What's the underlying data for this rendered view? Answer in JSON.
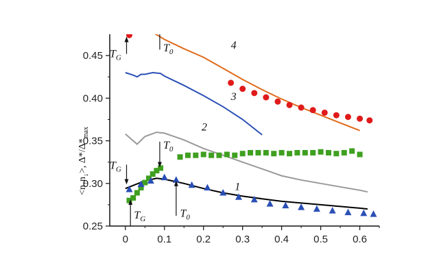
{
  "chart_data": {
    "type": "line",
    "xlim": [
      -0.04,
      0.65
    ],
    "ylim": [
      0.25,
      0.475
    ],
    "x_ticks": [
      "0",
      "0.1",
      "0.2",
      "0.3",
      "0.4",
      "0.5",
      "0.6"
    ],
    "x_tick_values": [
      0,
      0.1,
      0.2,
      0.3,
      0.4,
      0.5,
      0.6
    ],
    "y_ticks": [
      "0.25",
      "0.30",
      "0.35",
      "0.40",
      "0.45"
    ],
    "y_tick_values": [
      0.25,
      0.3,
      0.35,
      0.4,
      0.45
    ],
    "ylabel": "<n↑n↓>, Δ*/Δ*max",
    "grid": false,
    "lines": [
      {
        "name": "1",
        "color": "#000000",
        "x": [
          0.0,
          0.05,
          0.08,
          0.1,
          0.15,
          0.2,
          0.25,
          0.3,
          0.35,
          0.4,
          0.45,
          0.5,
          0.55,
          0.6,
          0.62
        ],
        "y": [
          0.294,
          0.303,
          0.306,
          0.305,
          0.3,
          0.294,
          0.289,
          0.285,
          0.282,
          0.279,
          0.277,
          0.275,
          0.273,
          0.271,
          0.27
        ]
      },
      {
        "name": "2",
        "color": "#999999",
        "x": [
          0.0,
          0.03,
          0.05,
          0.08,
          0.1,
          0.15,
          0.2,
          0.25,
          0.3,
          0.35,
          0.4,
          0.45,
          0.5,
          0.55,
          0.6,
          0.62
        ],
        "y": [
          0.358,
          0.346,
          0.355,
          0.36,
          0.359,
          0.351,
          0.341,
          0.333,
          0.325,
          0.317,
          0.309,
          0.304,
          0.3,
          0.296,
          0.292,
          0.29
        ]
      },
      {
        "name": "3",
        "color": "#2a4fb5",
        "x": [
          0.0,
          0.02,
          0.03,
          0.04,
          0.05,
          0.07,
          0.09,
          0.1,
          0.15,
          0.2,
          0.25,
          0.3,
          0.35
        ],
        "y": [
          0.43,
          0.427,
          0.425,
          0.428,
          0.428,
          0.43,
          0.429,
          0.426,
          0.415,
          0.403,
          0.39,
          0.375,
          0.357
        ]
      },
      {
        "name": "4",
        "color": "#e06a1a",
        "x": [
          0.06,
          0.1,
          0.15,
          0.2,
          0.25,
          0.3,
          0.35,
          0.4,
          0.45,
          0.5,
          0.55,
          0.6
        ],
        "y": [
          0.48,
          0.469,
          0.458,
          0.448,
          0.435,
          0.422,
          0.41,
          0.399,
          0.389,
          0.38,
          0.371,
          0.362
        ]
      }
    ],
    "markers": [
      {
        "shape": "circle",
        "color": "#e01a1a",
        "x": [
          0.01,
          0.27,
          0.3,
          0.33,
          0.36,
          0.39,
          0.42,
          0.45,
          0.48,
          0.51,
          0.54,
          0.57,
          0.6,
          0.625
        ],
        "y": [
          0.474,
          0.418,
          0.411,
          0.406,
          0.401,
          0.396,
          0.392,
          0.389,
          0.386,
          0.383,
          0.38,
          0.378,
          0.376,
          0.374
        ]
      },
      {
        "shape": "square",
        "color": "#3fa020",
        "x": [
          0.01,
          0.02,
          0.03,
          0.04,
          0.05,
          0.06,
          0.07,
          0.08,
          0.09,
          0.14,
          0.16,
          0.18,
          0.2,
          0.22,
          0.24,
          0.26,
          0.28,
          0.3,
          0.32,
          0.34,
          0.36,
          0.38,
          0.4,
          0.42,
          0.44,
          0.46,
          0.48,
          0.5,
          0.52,
          0.54,
          0.56,
          0.58,
          0.6
        ],
        "y": [
          0.28,
          0.283,
          0.289,
          0.295,
          0.301,
          0.306,
          0.311,
          0.315,
          0.318,
          0.331,
          0.333,
          0.333,
          0.334,
          0.333,
          0.333,
          0.334,
          0.333,
          0.335,
          0.336,
          0.336,
          0.336,
          0.335,
          0.336,
          0.335,
          0.336,
          0.336,
          0.336,
          0.337,
          0.336,
          0.335,
          0.336,
          0.338,
          0.334
        ]
      },
      {
        "shape": "triangle",
        "color": "#2a4fb5",
        "x": [
          0.01,
          0.04,
          0.065,
          0.1,
          0.13,
          0.17,
          0.21,
          0.25,
          0.29,
          0.33,
          0.37,
          0.41,
          0.45,
          0.49,
          0.53,
          0.57,
          0.61,
          0.635
        ],
        "y": [
          0.293,
          0.299,
          0.303,
          0.307,
          0.304,
          0.298,
          0.295,
          0.289,
          0.284,
          0.281,
          0.276,
          0.274,
          0.272,
          0.27,
          0.268,
          0.266,
          0.265,
          0.264
        ]
      }
    ],
    "curve_labels": [
      {
        "text": "1",
        "x": 0.28,
        "y": 0.292
      },
      {
        "text": "2",
        "x": 0.195,
        "y": 0.362
      },
      {
        "text": "3",
        "x": 0.27,
        "y": 0.398
      },
      {
        "text": "4",
        "x": 0.27,
        "y": 0.458
      }
    ],
    "annotations": [
      {
        "sub": "G",
        "x": 0.003,
        "y_from": 0.452,
        "y_to": 0.469,
        "dir": "up",
        "label_x": -0.04,
        "label_y": 0.448
      },
      {
        "sub": "0",
        "x": 0.088,
        "y_from": 0.475,
        "y_to": 0.457,
        "dir": "none",
        "label_x": 0.097,
        "label_y": 0.455
      },
      {
        "sub": "G",
        "x": 0.003,
        "y_from": 0.322,
        "y_to": 0.302,
        "dir": "down",
        "label_x": -0.04,
        "label_y": 0.317
      },
      {
        "sub": "0",
        "x": 0.088,
        "y_from": 0.349,
        "y_to": 0.322,
        "dir": "down",
        "label_x": 0.097,
        "label_y": 0.341
      },
      {
        "sub": "G",
        "x": 0.013,
        "y_from": 0.25,
        "y_to": 0.278,
        "dir": "up",
        "label_x": 0.022,
        "label_y": 0.259
      },
      {
        "sub": "0",
        "x": 0.13,
        "y_from": 0.262,
        "y_to": 0.3,
        "dir": "up",
        "label_x": 0.14,
        "label_y": 0.261
      }
    ]
  }
}
